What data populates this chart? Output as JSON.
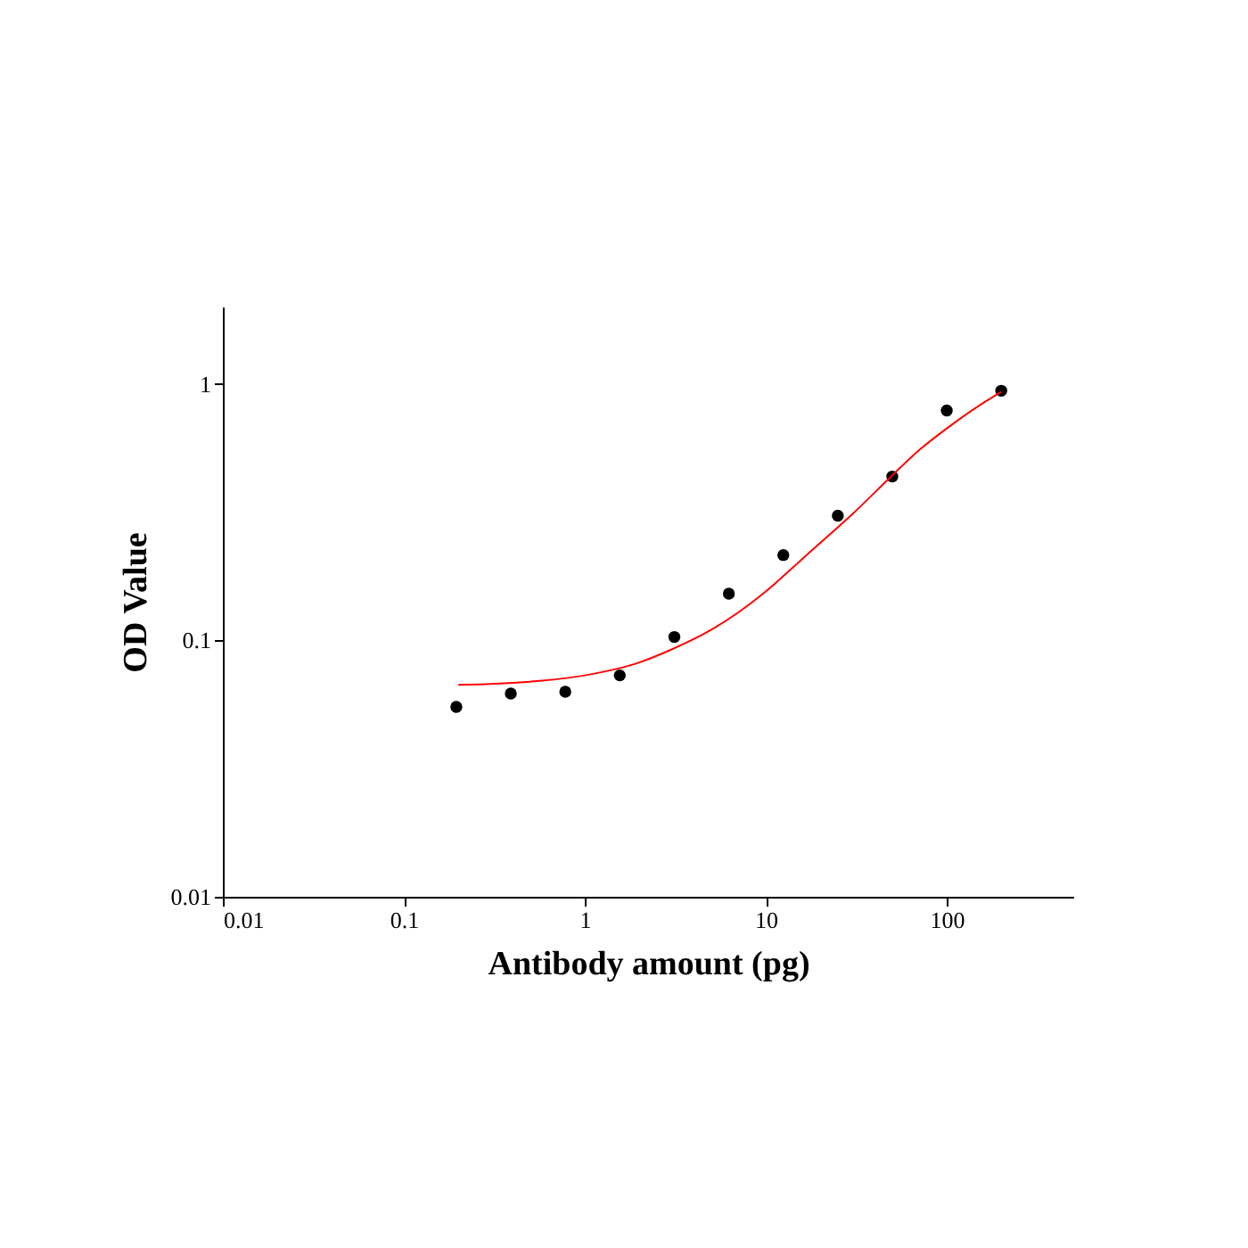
{
  "chart_data": {
    "type": "scatter",
    "xlabel": "Antibody amount (pg)",
    "ylabel": "OD Value",
    "log": "xy",
    "grid": false,
    "xlim": [
      0.01,
      500
    ],
    "ylim": [
      0.01,
      2
    ],
    "xticks": [
      0.01,
      0.1,
      1,
      10,
      100
    ],
    "yticks": [
      0.01,
      0.1,
      1
    ],
    "marker": "circle",
    "series": [
      {
        "color": "#000000",
        "x": [
          0.195,
          0.39,
          0.78,
          1.56,
          3.125,
          6.25,
          12.5,
          25,
          50,
          100,
          200
        ],
        "values": [
          0.055,
          0.062,
          0.063,
          0.073,
          0.103,
          0.152,
          0.215,
          0.306,
          0.435,
          0.787,
          0.94
        ]
      },
      {
        "type": "line",
        "color": "#ff0000",
        "marker": "none",
        "line_style": "solid",
        "x": [
          0.2,
          0.5,
          1,
          2,
          3,
          5,
          7,
          10,
          15,
          20,
          30,
          50,
          70,
          100,
          150,
          200
        ],
        "values": [
          0.067,
          0.069,
          0.073,
          0.082,
          0.092,
          0.11,
          0.128,
          0.155,
          0.2,
          0.24,
          0.31,
          0.44,
          0.55,
          0.67,
          0.82,
          0.93
        ]
      }
    ]
  }
}
